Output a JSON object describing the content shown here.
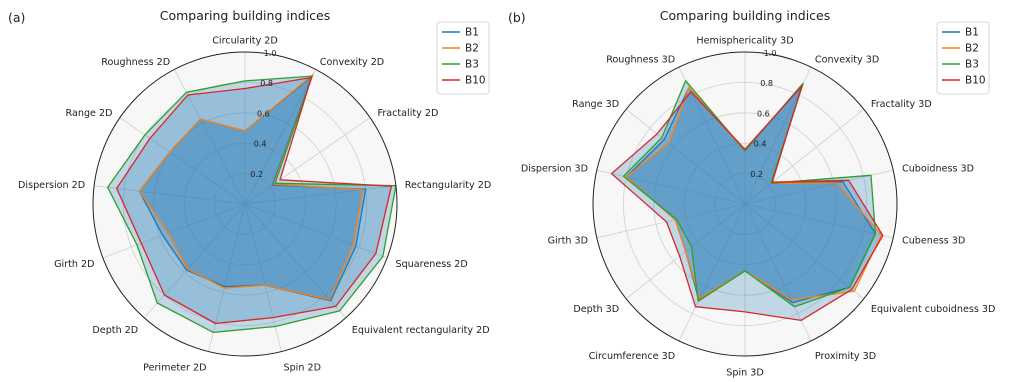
{
  "colors": {
    "B1": "#1f77b4",
    "B2": "#ff7f0e",
    "B3": "#2ca02c",
    "B10": "#d62728"
  },
  "chart_data": [
    {
      "type": "radar",
      "panel_label": "(a)",
      "title": "Comparing building indices",
      "categories": [
        "Circularity 2D",
        "Convexity 2D",
        "Fractality 2D",
        "Rectangularity 2D",
        "Squareness 2D",
        "Equivalent rectangularity 2D",
        "Spin 2D",
        "Perimeter 2D",
        "Depth 2D",
        "Girth 2D",
        "Dispersion 2D",
        "Range 2D",
        "Roughness 2D"
      ],
      "radial_ticks": [
        "0.2",
        "0.4",
        "0.6",
        "0.8",
        "1.0"
      ],
      "rlim": [
        0,
        1
      ],
      "grid": true,
      "legend_placement": "top-right",
      "series": [
        {
          "name": "B1",
          "values": [
            0.48,
            0.95,
            0.22,
            0.8,
            0.78,
            0.85,
            0.55,
            0.56,
            0.58,
            0.58,
            0.7,
            0.6,
            0.63
          ]
        },
        {
          "name": "B2",
          "values": [
            0.48,
            0.96,
            0.23,
            0.78,
            0.76,
            0.84,
            0.55,
            0.57,
            0.57,
            0.54,
            0.7,
            0.6,
            0.63
          ]
        },
        {
          "name": "B3",
          "values": [
            0.81,
            0.95,
            0.24,
            1.0,
            0.97,
            0.94,
            0.83,
            0.87,
            0.87,
            0.76,
            0.91,
            0.8,
            0.83
          ]
        },
        {
          "name": "B10",
          "values": [
            0.76,
            0.94,
            0.28,
            0.97,
            0.92,
            0.9,
            0.77,
            0.81,
            0.8,
            0.73,
            0.85,
            0.76,
            0.81
          ]
        }
      ]
    },
    {
      "type": "radar",
      "panel_label": "(b)",
      "title": "Comparing building indices",
      "categories": [
        "Hemisphericality 3D",
        "Convexity 3D",
        "Fractality 3D",
        "Cuboidness 3D",
        "Cubeness 3D",
        "Equivalent cuboidness 3D",
        "Proximity 3D",
        "Spin 3D",
        "Circumference 3D",
        "Depth 3D",
        "Girth 3D",
        "Dispersion 3D",
        "Range 3D",
        "Roughness 3D"
      ],
      "radial_ticks": [
        "0.2",
        "0.4",
        "0.6",
        "0.8",
        "1.0"
      ],
      "rlim": [
        0,
        1
      ],
      "grid": true,
      "legend_placement": "top-right",
      "series": [
        {
          "name": "B1",
          "values": [
            0.35,
            0.88,
            0.22,
            0.66,
            0.88,
            0.88,
            0.72,
            0.44,
            0.7,
            0.5,
            0.47,
            0.8,
            0.68,
            0.85
          ]
        },
        {
          "name": "B2",
          "values": [
            0.35,
            0.88,
            0.22,
            0.62,
            0.92,
            0.92,
            0.7,
            0.44,
            0.69,
            0.5,
            0.47,
            0.8,
            0.64,
            0.85
          ]
        },
        {
          "name": "B3",
          "values": [
            0.35,
            0.88,
            0.22,
            0.85,
            0.88,
            0.88,
            0.75,
            0.44,
            0.71,
            0.45,
            0.46,
            0.82,
            0.7,
            0.9
          ]
        },
        {
          "name": "B10",
          "values": [
            0.36,
            0.86,
            0.23,
            0.7,
            0.93,
            0.9,
            0.85,
            0.71,
            0.75,
            0.55,
            0.53,
            0.9,
            0.74,
            0.82
          ]
        }
      ]
    }
  ]
}
